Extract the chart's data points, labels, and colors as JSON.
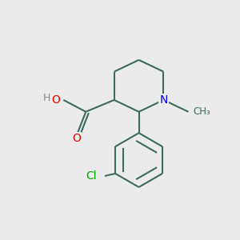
{
  "bg_color": "#ebebeb",
  "bond_color": "#3d6b5e",
  "N_color": "#0000ee",
  "O_color": "#ee0000",
  "Cl_color": "#00aa00",
  "line_width": 1.5,
  "figsize": [
    3.0,
    3.0
  ],
  "dpi": 100,
  "xlim": [
    0,
    10
  ],
  "ylim": [
    0,
    10
  ]
}
